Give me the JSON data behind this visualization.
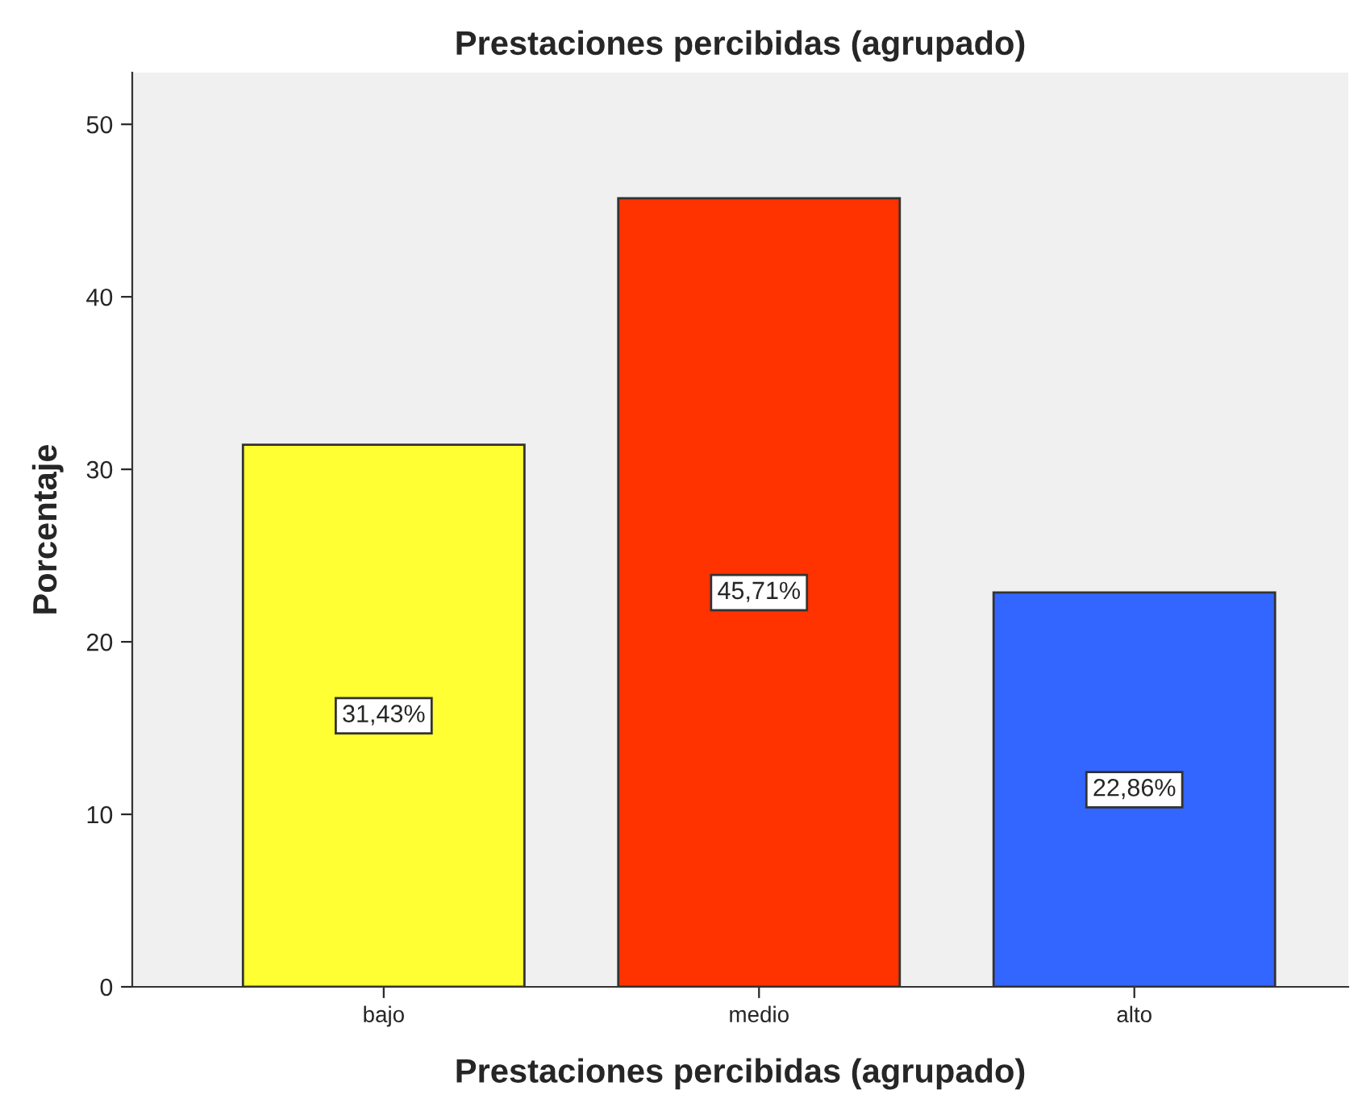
{
  "chart_data": {
    "type": "bar",
    "title": "Prestaciones percibidas (agrupado)",
    "xlabel": "Prestaciones percibidas (agrupado)",
    "ylabel": "Porcentaje",
    "categories": [
      "bajo",
      "medio",
      "alto"
    ],
    "values": [
      31.43,
      45.71,
      22.86
    ],
    "colors": [
      "#ffff33",
      "#ff3300",
      "#3366ff"
    ],
    "value_labels": [
      "31,43%",
      "45,71%",
      "22,86%"
    ],
    "ylim": [
      0,
      53
    ],
    "yticks": [
      0,
      10,
      20,
      30,
      40,
      50
    ],
    "grid": false,
    "legend": false
  }
}
